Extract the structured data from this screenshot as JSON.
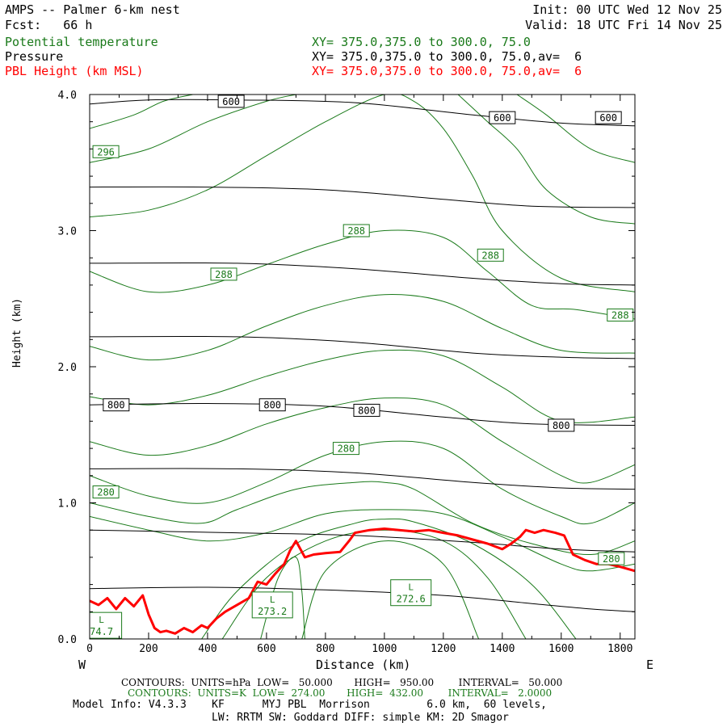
{
  "header": {
    "title": "AMPS -- Palmer 6-km nest",
    "fcst": "Fcst:   66 h",
    "init": "Init: 00 UTC Wed 12 Nov 25",
    "valid": "Valid: 18 UTC Fri 14 Nov 25",
    "field1": "Potential temperature",
    "field1_xy": "XY= 375.0,375.0 to 300.0, 75.0",
    "field2": "Pressure",
    "field2_xy": "XY= 375.0,375.0 to 300.0, 75.0,av=  6",
    "field3": "PBL Height (km MSL)",
    "field3_xy": "XY= 375.0,375.0 to 300.0, 75.0,av=  6"
  },
  "colors": {
    "theta": "#1a7a1a",
    "pressure": "#000000",
    "pbl": "#ff0000"
  },
  "footer": {
    "line1": "CONTOURS:  UNITS=hPa  LOW=   50.000       HIGH=   950.00        INTERVAL=   50.000",
    "line2": "CONTOURS:  UNITS=K  LOW=  274.00       HIGH=  432.00        INTERVAL=   2.0000",
    "line3": "Model Info: V4.3.3    KF      MYJ PBL  Morrison         6.0 km,  60 levels,",
    "line4": "LW: RRTM SW: Goddard DIFF: simple KM: 2D Smagor"
  },
  "chart_data": {
    "type": "line",
    "xlabel": "Distance (km)",
    "ylabel": "Height (km)",
    "xlim": [
      0,
      1850
    ],
    "ylim": [
      0,
      4
    ],
    "x_ticks": [
      0,
      200,
      400,
      600,
      800,
      1000,
      1200,
      1400,
      1600,
      1800
    ],
    "y_ticks": [
      "0.0",
      "1.0",
      "2.0",
      "3.0",
      "4.0"
    ],
    "west_label": "W",
    "east_label": "E",
    "pressure_isobars": [
      {
        "x": [
          0,
          200,
          500,
          900,
          1300,
          1600,
          1850
        ],
        "y": [
          3.93,
          3.96,
          3.96,
          3.94,
          3.85,
          3.79,
          3.77
        ]
      },
      {
        "x": [
          0,
          400,
          800,
          1200,
          1500,
          1850
        ],
        "y": [
          3.32,
          3.32,
          3.3,
          3.23,
          3.18,
          3.17
        ]
      },
      {
        "x": [
          0,
          500,
          900,
          1300,
          1600,
          1850
        ],
        "y": [
          2.76,
          2.76,
          2.72,
          2.65,
          2.61,
          2.6
        ]
      },
      {
        "x": [
          0,
          500,
          900,
          1300,
          1600,
          1850
        ],
        "y": [
          2.22,
          2.22,
          2.18,
          2.1,
          2.07,
          2.06
        ]
      },
      {
        "x": [
          0,
          400,
          800,
          1200,
          1500,
          1850
        ],
        "y": [
          1.72,
          1.73,
          1.71,
          1.63,
          1.58,
          1.57
        ]
      },
      {
        "x": [
          0,
          500,
          900,
          1300,
          1600,
          1850
        ],
        "y": [
          1.25,
          1.25,
          1.22,
          1.15,
          1.11,
          1.1
        ]
      },
      {
        "x": [
          0,
          500,
          900,
          1300,
          1600,
          1850
        ],
        "y": [
          0.8,
          0.78,
          0.76,
          0.71,
          0.66,
          0.64
        ]
      },
      {
        "x": [
          0,
          400,
          800,
          1200,
          1500,
          1700,
          1850
        ],
        "y": [
          0.37,
          0.38,
          0.36,
          0.32,
          0.26,
          0.22,
          0.2
        ]
      }
    ],
    "pressure_labels": [
      {
        "text": "600",
        "x": 480,
        "y": 3.95
      },
      {
        "text": "600",
        "x": 1400,
        "y": 3.83
      },
      {
        "text": "600",
        "x": 1760,
        "y": 3.83
      },
      {
        "text": "800",
        "x": 90,
        "y": 1.72
      },
      {
        "text": "800",
        "x": 620,
        "y": 1.72
      },
      {
        "text": "800",
        "x": 940,
        "y": 1.68
      },
      {
        "text": "800",
        "x": 1600,
        "y": 1.57
      }
    ],
    "theta_isentropes": [
      {
        "x": [
          0,
          200,
          400,
          600,
          800,
          1000,
          1200,
          1400,
          1600,
          1850
        ],
        "y": [
          1.78,
          1.72,
          1.79,
          1.93,
          2.05,
          2.12,
          2.08,
          1.85,
          1.6,
          1.63
        ]
      },
      {
        "x": [
          0,
          200,
          400,
          600,
          800,
          1000,
          1200,
          1400,
          1600,
          1850
        ],
        "y": [
          2.15,
          2.05,
          2.12,
          2.3,
          2.45,
          2.53,
          2.48,
          2.28,
          2.12,
          2.1
        ]
      },
      {
        "x": [
          0,
          200,
          400,
          600,
          800,
          1000,
          1200,
          1350,
          1500,
          1650,
          1850
        ],
        "y": [
          2.7,
          2.55,
          2.6,
          2.75,
          2.9,
          3.0,
          2.95,
          2.7,
          2.45,
          2.42,
          2.35
        ]
      },
      {
        "x": [
          0,
          200,
          400,
          600,
          800,
          1000,
          1100,
          1200,
          1300,
          1400,
          1600,
          1850
        ],
        "y": [
          3.1,
          3.15,
          3.3,
          3.55,
          3.8,
          4.0,
          3.95,
          3.75,
          3.4,
          3.0,
          2.65,
          2.55
        ]
      },
      {
        "x": [
          0,
          200,
          400,
          600,
          700
        ],
        "y": [
          3.5,
          3.6,
          3.8,
          3.95,
          4.0
        ]
      },
      {
        "x": [
          0,
          150,
          250,
          350
        ],
        "y": [
          3.75,
          3.85,
          3.95,
          4.0
        ]
      },
      {
        "x": [
          1250,
          1350,
          1450,
          1550,
          1700,
          1850
        ],
        "y": [
          4.0,
          3.8,
          3.6,
          3.3,
          3.1,
          3.05
        ]
      },
      {
        "x": [
          1450,
          1550,
          1700,
          1850
        ],
        "y": [
          4.0,
          3.85,
          3.6,
          3.5
        ]
      },
      {
        "x": [
          0,
          200,
          400,
          600,
          800,
          1000,
          1200,
          1400,
          1600,
          1700,
          1850
        ],
        "y": [
          1.45,
          1.35,
          1.42,
          1.58,
          1.7,
          1.77,
          1.72,
          1.45,
          1.2,
          1.15,
          1.28
        ]
      },
      {
        "x": [
          0,
          200,
          400,
          600,
          800,
          1000,
          1200,
          1400,
          1600,
          1700,
          1850
        ],
        "y": [
          1.2,
          1.05,
          1.0,
          1.15,
          1.35,
          1.45,
          1.4,
          1.1,
          0.9,
          0.85,
          1.0
        ]
      },
      {
        "x": [
          0,
          200,
          380,
          500,
          700,
          900,
          1000,
          1100,
          1300,
          1500,
          1700,
          1850
        ],
        "y": [
          1.0,
          0.9,
          0.85,
          0.95,
          1.1,
          1.15,
          1.15,
          1.1,
          0.85,
          0.7,
          0.62,
          0.72
        ]
      },
      {
        "x": [
          0,
          200,
          400,
          600,
          800,
          1000,
          1200,
          1400,
          1600,
          1700,
          1850
        ],
        "y": [
          0.9,
          0.8,
          0.72,
          0.78,
          0.92,
          0.95,
          0.92,
          0.75,
          0.55,
          0.5,
          0.55
        ]
      },
      {
        "x": [
          380,
          500,
          700,
          900,
          1000,
          1100,
          1300,
          1500,
          1650
        ],
        "y": [
          0.0,
          0.35,
          0.7,
          0.85,
          0.88,
          0.86,
          0.7,
          0.4,
          0.0
        ]
      },
      {
        "x": [
          450,
          600,
          800,
          1000,
          1200,
          1350,
          1480
        ],
        "y": [
          0.0,
          0.45,
          0.72,
          0.8,
          0.72,
          0.45,
          0.0
        ]
      },
      {
        "x": [
          720,
          800,
          1000,
          1200,
          1320
        ],
        "y": [
          0.0,
          0.5,
          0.72,
          0.55,
          0.0
        ]
      },
      {
        "x": [
          580,
          640,
          700,
          720,
          730
        ],
        "y": [
          0.0,
          0.45,
          0.6,
          0.35,
          0.0
        ]
      }
    ],
    "theta_labels": [
      {
        "text": "296",
        "x": 55,
        "y": 3.58
      },
      {
        "text": "288",
        "x": 455,
        "y": 2.68
      },
      {
        "text": "288",
        "x": 905,
        "y": 3.0
      },
      {
        "text": "288",
        "x": 1360,
        "y": 2.82
      },
      {
        "text": "288",
        "x": 1800,
        "y": 2.38
      },
      {
        "text": "280",
        "x": 55,
        "y": 1.08
      },
      {
        "text": "280",
        "x": 870,
        "y": 1.4
      },
      {
        "text": "280",
        "x": 1770,
        "y": 0.59
      }
    ],
    "theta_minima": [
      {
        "text": "273.2",
        "x": 620,
        "y": 0.25,
        "value_y": 0.18
      },
      {
        "text": "272.6",
        "x": 1090,
        "y": 0.34,
        "value_y": 0.27
      },
      {
        "text": "74.7",
        "x": 40,
        "y": 0.1,
        "value_y": 0.05
      }
    ],
    "pbl_height": {
      "name": "PBL Height (km MSL)",
      "x": [
        0,
        30,
        60,
        90,
        120,
        150,
        180,
        200,
        220,
        240,
        260,
        290,
        320,
        350,
        380,
        400,
        430,
        460,
        500,
        540,
        570,
        600,
        630,
        660,
        680,
        700,
        730,
        760,
        800,
        850,
        880,
        900,
        950,
        1000,
        1050,
        1100,
        1150,
        1200,
        1250,
        1300,
        1350,
        1400,
        1430,
        1460,
        1480,
        1510,
        1540,
        1580,
        1610,
        1640,
        1680,
        1720,
        1760,
        1800,
        1850
      ],
      "y": [
        0.28,
        0.25,
        0.3,
        0.22,
        0.3,
        0.24,
        0.32,
        0.18,
        0.08,
        0.05,
        0.06,
        0.04,
        0.08,
        0.05,
        0.1,
        0.08,
        0.15,
        0.2,
        0.25,
        0.3,
        0.42,
        0.4,
        0.48,
        0.55,
        0.65,
        0.72,
        0.6,
        0.62,
        0.63,
        0.64,
        0.72,
        0.78,
        0.8,
        0.81,
        0.8,
        0.79,
        0.8,
        0.78,
        0.76,
        0.73,
        0.7,
        0.66,
        0.7,
        0.75,
        0.8,
        0.78,
        0.8,
        0.78,
        0.76,
        0.62,
        0.58,
        0.55,
        0.55,
        0.53,
        0.5
      ]
    }
  }
}
